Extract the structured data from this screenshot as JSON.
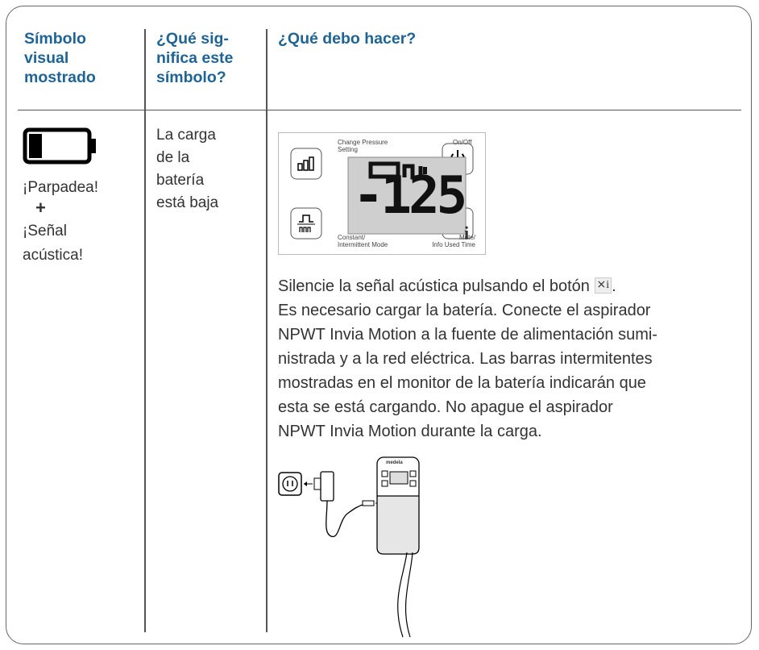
{
  "header": {
    "col1": [
      "Símbolo",
      "visual",
      "mostrado"
    ],
    "col2": [
      "¿Qué sig-",
      "nifica este",
      "símbolo?"
    ],
    "col3": "¿Qué debo hacer?"
  },
  "row": {
    "symbol_texts": [
      "¡Parpadea!",
      "+",
      "¡Señal",
      "acústica!"
    ],
    "meaning": [
      "La carga",
      "de la",
      "batería",
      "está baja"
    ],
    "panel": {
      "change_pressure": [
        "Change Pressure",
        "Setting"
      ],
      "on_off": "On/Off",
      "mode": [
        "Constant/",
        "Intermittent Mode"
      ],
      "mute": [
        "Mute/",
        "Info Used Time"
      ],
      "lcd": "-125",
      "mute_icon": "i"
    },
    "instruction_first": {
      "before": "Silencie la señal acústica pulsando el botón",
      "icon": "i",
      "after": "."
    },
    "instruction_lines": [
      "Es necesario cargar la batería. Conecte el aspirador",
      "NPWT Invia Motion a la fuente de alimentación sumi-",
      "nistrada y a la red eléctrica. Las barras intermitentes",
      "mostradas en el monitor de la batería indicarán que",
      "esta se está cargando. No apague el aspirador",
      "NPWT Invia Motion durante la carga."
    ],
    "device_brand": "medela"
  }
}
